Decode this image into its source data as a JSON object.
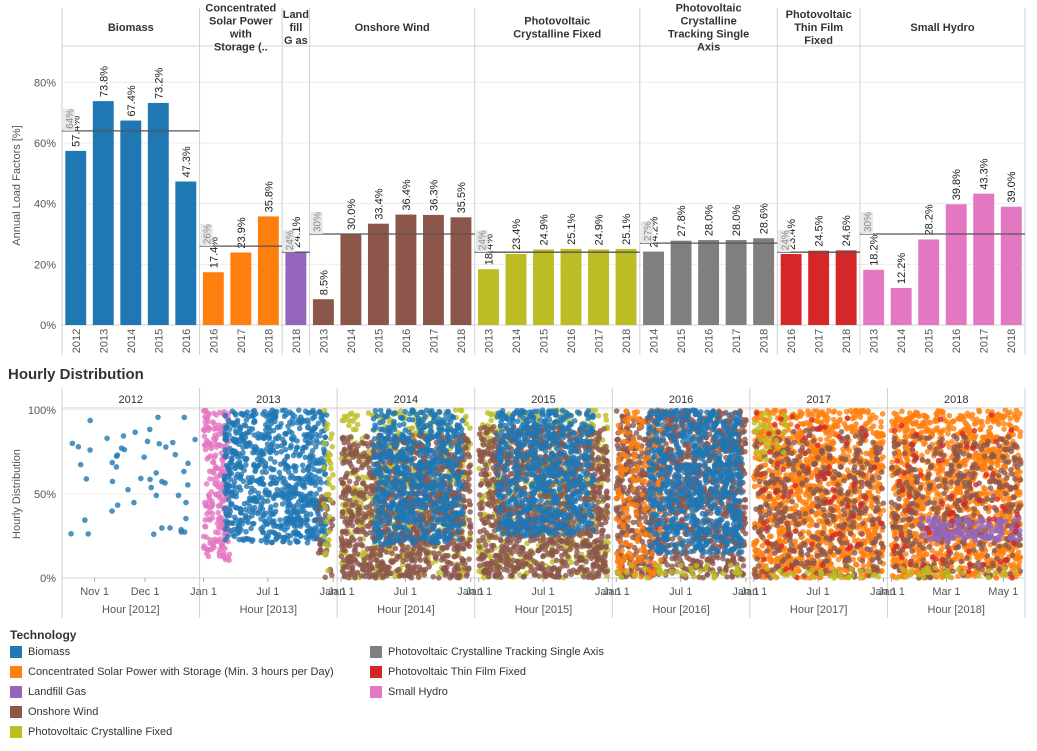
{
  "hourly_title": "Hourly Distribution",
  "chart_data": [
    {
      "type": "bar",
      "ylabel": "Annual Load Factors [%]",
      "ylim": [
        0,
        90
      ],
      "yticks": [
        "0%",
        "20%",
        "40%",
        "60%",
        "80%"
      ],
      "yticks_values": [
        0,
        20,
        40,
        60,
        80
      ],
      "panels": [
        {
          "title": "Biomass",
          "color": "#1f77b4",
          "reference_label": "64%",
          "reference_value": 64,
          "years": [
            "2012",
            "2013",
            "2014",
            "2015",
            "2016"
          ],
          "values": [
            57.4,
            73.8,
            67.4,
            73.2,
            47.3
          ],
          "labels": [
            "57.4%",
            "73.8%",
            "67.4%",
            "73.2%",
            "47.3%"
          ]
        },
        {
          "title": "Concentrated Solar Power with Storage (..",
          "color": "#ff7f0e",
          "reference_label": "26%",
          "reference_value": 26,
          "years": [
            "2016",
            "2017",
            "2018"
          ],
          "values": [
            17.4,
            23.9,
            35.8
          ],
          "labels": [
            "17.4%",
            "23.9%",
            "35.8%"
          ]
        },
        {
          "title": "Land fill G as",
          "color": "#9467bd",
          "reference_label": "24%",
          "reference_value": 24,
          "years": [
            "2018"
          ],
          "values": [
            24.1
          ],
          "labels": [
            "24.1%"
          ]
        },
        {
          "title": "Onshore Wind",
          "color": "#8c564b",
          "reference_label": "30%",
          "reference_value": 30,
          "years": [
            "2013",
            "2014",
            "2015",
            "2016",
            "2017",
            "2018"
          ],
          "values": [
            8.5,
            30.0,
            33.4,
            36.4,
            36.3,
            35.5
          ],
          "labels": [
            "8.5%",
            "30.0%",
            "33.4%",
            "36.4%",
            "36.3%",
            "35.5%"
          ]
        },
        {
          "title": "Photovoltaic Crystalline Fixed",
          "color": "#bcbd22",
          "reference_label": "24%",
          "reference_value": 24,
          "years": [
            "2013",
            "2014",
            "2015",
            "2016",
            "2017",
            "2018"
          ],
          "values": [
            18.4,
            23.4,
            24.9,
            25.1,
            24.9,
            25.1
          ],
          "labels": [
            "18.4%",
            "23.4%",
            "24.9%",
            "25.1%",
            "24.9%",
            "25.1%"
          ]
        },
        {
          "title": "Photovoltaic Crystalline Tracking Single Axis",
          "color": "#7f7f7f",
          "reference_label": "27%",
          "reference_value": 27,
          "years": [
            "2014",
            "2015",
            "2016",
            "2017",
            "2018"
          ],
          "values": [
            24.2,
            27.8,
            28.0,
            28.0,
            28.6
          ],
          "labels": [
            "24.2%",
            "27.8%",
            "28.0%",
            "28.0%",
            "28.6%"
          ]
        },
        {
          "title": "Photovoltaic Thin Film Fixed",
          "color": "#d62728",
          "reference_label": "24%",
          "reference_value": 24,
          "years": [
            "2016",
            "2017",
            "2018"
          ],
          "values": [
            23.4,
            24.5,
            24.6
          ],
          "labels": [
            "23.4%",
            "24.5%",
            "24.6%"
          ]
        },
        {
          "title": "Small Hydro",
          "color": "#e377c2",
          "reference_label": "30%",
          "reference_value": 30,
          "years": [
            "2013",
            "2014",
            "2015",
            "2016",
            "2017",
            "2018"
          ],
          "values": [
            18.2,
            12.2,
            28.2,
            39.8,
            43.3,
            39.0
          ],
          "labels": [
            "18.2%",
            "12.2%",
            "28.2%",
            "39.8%",
            "43.3%",
            "39.0%"
          ]
        }
      ]
    },
    {
      "type": "scatter",
      "title": "Hourly Distribution",
      "ylabel": "Hourly Distribution",
      "ylim": [
        0,
        100
      ],
      "yticks": [
        "0%",
        "50%",
        "100%"
      ],
      "yticks_values": [
        0,
        50,
        100
      ],
      "panels": [
        {
          "year": "2012",
          "xlabel": "Hour [2012]",
          "x_range": [
            "2012-10-15",
            "2012-12-31"
          ],
          "ticks": [
            "Nov 1",
            "Dec 1"
          ],
          "tick_dates": [
            "2012-11-01",
            "2012-12-01"
          ],
          "clusters": [
            {
              "tech": "Biomass",
              "from": "2012-10-18",
              "to": "2012-12-31",
              "ymin": 20,
              "ymax": 100,
              "density": "sparse"
            }
          ]
        },
        {
          "year": "2013",
          "xlabel": "Hour [2013]",
          "x_range": [
            "2013-01-01",
            "2014-01-01"
          ],
          "ticks": [
            "Jan 1",
            "Jul 1",
            "Jan 1"
          ],
          "tick_dates": [
            "2013-01-01",
            "2013-07-01",
            "2014-01-01"
          ],
          "clusters": [
            {
              "tech": "Small Hydro",
              "from": "2013-01-01",
              "to": "2013-03-15",
              "ymin": 10,
              "ymax": 100,
              "density": "dense"
            },
            {
              "tech": "Biomass",
              "from": "2013-03-01",
              "to": "2013-12-15",
              "ymin": 20,
              "ymax": 100,
              "density": "dense"
            },
            {
              "tech": "Onshore Wind",
              "from": "2013-11-20",
              "to": "2014-01-01",
              "ymin": 0,
              "ymax": 55,
              "density": "medium"
            },
            {
              "tech": "Photovoltaic Crystalline Fixed",
              "from": "2013-12-05",
              "to": "2014-01-01",
              "ymin": 0,
              "ymax": 100,
              "density": "medium"
            }
          ]
        },
        {
          "year": "2014",
          "xlabel": "Hour [2014]",
          "x_range": [
            "2014-01-01",
            "2015-01-01"
          ],
          "ticks": [
            "Jan 1",
            "Jul 1",
            "Jan 1"
          ],
          "tick_dates": [
            "2014-01-01",
            "2014-07-01",
            "2015-01-01"
          ],
          "clusters": [
            {
              "tech": "Photovoltaic Crystalline Fixed",
              "from": "2014-01-01",
              "to": "2015-01-01",
              "ymin": 0,
              "ymax": 100,
              "density": "medium"
            },
            {
              "tech": "Onshore Wind",
              "from": "2014-01-01",
              "to": "2015-01-01",
              "ymin": 0,
              "ymax": 85,
              "density": "dense"
            },
            {
              "tech": "Biomass",
              "from": "2014-04-01",
              "to": "2014-12-10",
              "ymin": 20,
              "ymax": 100,
              "density": "dense"
            }
          ]
        },
        {
          "year": "2015",
          "xlabel": "Hour [2015]",
          "x_range": [
            "2015-01-01",
            "2016-01-01"
          ],
          "ticks": [
            "Jan 1",
            "Jul 1",
            "Jan 1"
          ],
          "tick_dates": [
            "2015-01-01",
            "2015-07-01",
            "2016-01-01"
          ],
          "clusters": [
            {
              "tech": "Photovoltaic Crystalline Fixed",
              "from": "2015-01-01",
              "to": "2016-01-01",
              "ymin": 0,
              "ymax": 100,
              "density": "medium"
            },
            {
              "tech": "Onshore Wind",
              "from": "2015-01-01",
              "to": "2016-01-01",
              "ymin": 0,
              "ymax": 90,
              "density": "dense"
            },
            {
              "tech": "Biomass",
              "from": "2015-02-20",
              "to": "2015-11-20",
              "ymin": 25,
              "ymax": 100,
              "density": "dense"
            }
          ]
        },
        {
          "year": "2016",
          "xlabel": "Hour [2016]",
          "x_range": [
            "2016-01-01",
            "2017-01-01"
          ],
          "ticks": [
            "Jan 1",
            "Jul 1",
            "Jan 1"
          ],
          "tick_dates": [
            "2016-01-01",
            "2016-07-01",
            "2017-01-01"
          ],
          "clusters": [
            {
              "tech": "Onshore Wind",
              "from": "2016-01-01",
              "to": "2017-01-01",
              "ymin": 0,
              "ymax": 100,
              "density": "dense"
            },
            {
              "tech": "Concentrated Solar Power with Storage (Min. 3 hours per Day)",
              "from": "2016-01-01",
              "to": "2016-05-15",
              "ymin": 0,
              "ymax": 100,
              "density": "medium"
            },
            {
              "tech": "Biomass",
              "from": "2016-04-01",
              "to": "2016-12-20",
              "ymin": 15,
              "ymax": 100,
              "density": "dense"
            },
            {
              "tech": "Photovoltaic Crystalline Fixed",
              "from": "2016-01-01",
              "to": "2017-01-01",
              "ymin": 0,
              "ymax": 8,
              "density": "medium"
            }
          ]
        },
        {
          "year": "2017",
          "xlabel": "Hour [2017]",
          "x_range": [
            "2017-01-01",
            "2018-01-01"
          ],
          "ticks": [
            "Jan 1",
            "Jul 1",
            "Jan 1"
          ],
          "tick_dates": [
            "2017-01-01",
            "2017-07-01",
            "2018-01-01"
          ],
          "clusters": [
            {
              "tech": "Concentrated Solar Power with Storage (Min. 3 hours per Day)",
              "from": "2017-01-01",
              "to": "2018-01-01",
              "ymin": 0,
              "ymax": 100,
              "density": "dense"
            },
            {
              "tech": "Onshore Wind",
              "from": "2017-01-01",
              "to": "2018-01-01",
              "ymin": 0,
              "ymax": 90,
              "density": "medium"
            },
            {
              "tech": "Photovoltaic Crystalline Fixed",
              "from": "2017-01-01",
              "to": "2017-04-01",
              "ymin": 70,
              "ymax": 100,
              "density": "medium"
            },
            {
              "tech": "Photovoltaic Thin Film Fixed",
              "from": "2017-01-01",
              "to": "2018-01-01",
              "ymin": 0,
              "ymax": 100,
              "density": "sparse"
            },
            {
              "tech": "Photovoltaic Crystalline Fixed",
              "from": "2017-01-01",
              "to": "2018-01-01",
              "ymin": 0,
              "ymax": 6,
              "density": "medium"
            }
          ]
        },
        {
          "year": "2018",
          "xlabel": "Hour [2018]",
          "x_range": [
            "2018-01-01",
            "2018-05-20"
          ],
          "ticks": [
            "Jan 1",
            "Mar 1",
            "May 1"
          ],
          "tick_dates": [
            "2018-01-01",
            "2018-03-01",
            "2018-05-01"
          ],
          "clusters": [
            {
              "tech": "Concentrated Solar Power with Storage (Min. 3 hours per Day)",
              "from": "2018-01-01",
              "to": "2018-05-20",
              "ymin": 0,
              "ymax": 100,
              "density": "dense"
            },
            {
              "tech": "Onshore Wind",
              "from": "2018-01-01",
              "to": "2018-05-20",
              "ymin": 0,
              "ymax": 85,
              "density": "medium"
            },
            {
              "tech": "Landfill Gas",
              "from": "2018-02-01",
              "to": "2018-05-20",
              "ymin": 22,
              "ymax": 36,
              "density": "dense"
            },
            {
              "tech": "Photovoltaic Thin Film Fixed",
              "from": "2018-01-01",
              "to": "2018-05-20",
              "ymin": 0,
              "ymax": 100,
              "density": "sparse"
            },
            {
              "tech": "Photovoltaic Crystalline Fixed",
              "from": "2018-01-01",
              "to": "2018-05-20",
              "ymin": 0,
              "ymax": 6,
              "density": "medium"
            }
          ]
        }
      ]
    }
  ],
  "legend": {
    "title": "Technology",
    "items": [
      {
        "label": "Biomass",
        "color": "#1f77b4"
      },
      {
        "label": "Concentrated Solar Power with Storage (Min. 3 hours per Day)",
        "color": "#ff7f0e"
      },
      {
        "label": "Landfill Gas",
        "color": "#9467bd"
      },
      {
        "label": "Onshore Wind",
        "color": "#8c564b"
      },
      {
        "label": "Photovoltaic Crystalline Fixed",
        "color": "#bcbd22"
      },
      {
        "label": "Photovoltaic Crystalline Tracking Single Axis",
        "color": "#7f7f7f"
      },
      {
        "label": "Photovoltaic Thin Film Fixed",
        "color": "#d62728"
      },
      {
        "label": "Small Hydro",
        "color": "#e377c2"
      }
    ]
  }
}
